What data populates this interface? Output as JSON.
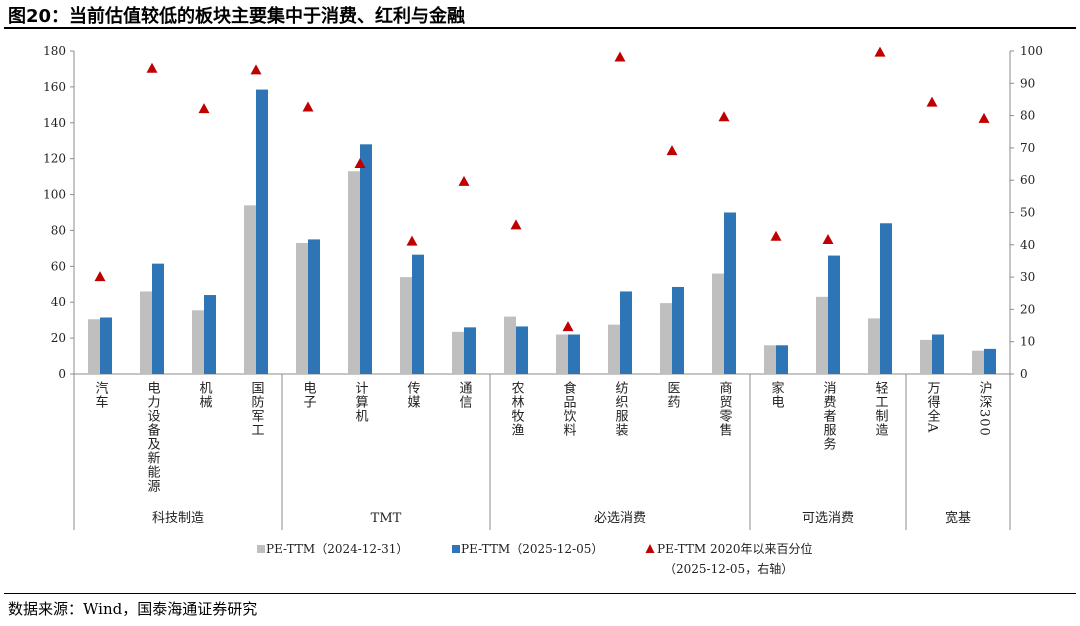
{
  "figure": {
    "title": "图20：当前估值较低的板块主要集中于消费、红利与金融",
    "source": "数据来源：Wind，国泰海通证券研究"
  },
  "colors": {
    "pe_2024": "#bfbfbf",
    "pe_2025": "#2e75b6",
    "percentile": "#c00000"
  },
  "chart_data": {
    "type": "bar",
    "categories": [
      "汽车",
      "电力设备及新能源",
      "机械",
      "国防军工",
      "电子",
      "计算机",
      "传媒",
      "通信",
      "农林牧渔",
      "食品饮料",
      "纺织服装",
      "医药",
      "商贸零售",
      "家电",
      "消费者服务",
      "轻工制造",
      "万得全A",
      "沪深300"
    ],
    "groups": [
      {
        "name": "科技制造",
        "count": 4
      },
      {
        "name": "TMT",
        "count": 4
      },
      {
        "name": "必选消费",
        "count": 5
      },
      {
        "name": "可选消费",
        "count": 3
      },
      {
        "name": "宽基",
        "count": 2
      }
    ],
    "series": [
      {
        "name": "PE-TTM（2024-12-31）",
        "type": "bar",
        "axis": "left",
        "values": [
          30.5,
          46,
          35.5,
          94,
          73,
          113,
          54,
          23.5,
          32,
          22,
          27.5,
          39.5,
          56,
          16,
          43,
          31,
          19,
          13
        ]
      },
      {
        "name": "PE-TTM（2025-12-05）",
        "type": "bar",
        "axis": "left",
        "values": [
          31.5,
          61.5,
          44,
          158.5,
          75,
          128,
          66.5,
          26,
          26.5,
          22,
          46,
          48.5,
          90,
          16,
          66,
          84,
          22,
          14
        ]
      },
      {
        "name": "PE-TTM 2020年以来百分位",
        "name_line2": "（2025-12-05，右轴）",
        "type": "scatter",
        "axis": "right",
        "values": [
          30,
          94.5,
          82,
          94,
          82.5,
          65,
          41,
          59.5,
          46,
          14.5,
          98,
          69,
          79.5,
          42.5,
          41.5,
          99.5,
          84,
          79
        ]
      }
    ],
    "y_left": {
      "min": 0,
      "max": 180,
      "ticks": [
        0,
        20,
        40,
        60,
        80,
        100,
        120,
        140,
        160,
        180
      ]
    },
    "y_right": {
      "min": 0,
      "max": 100,
      "ticks": [
        0,
        10,
        20,
        30,
        40,
        50,
        60,
        70,
        80,
        90,
        100
      ]
    },
    "grid": false,
    "legend_position": "bottom"
  }
}
